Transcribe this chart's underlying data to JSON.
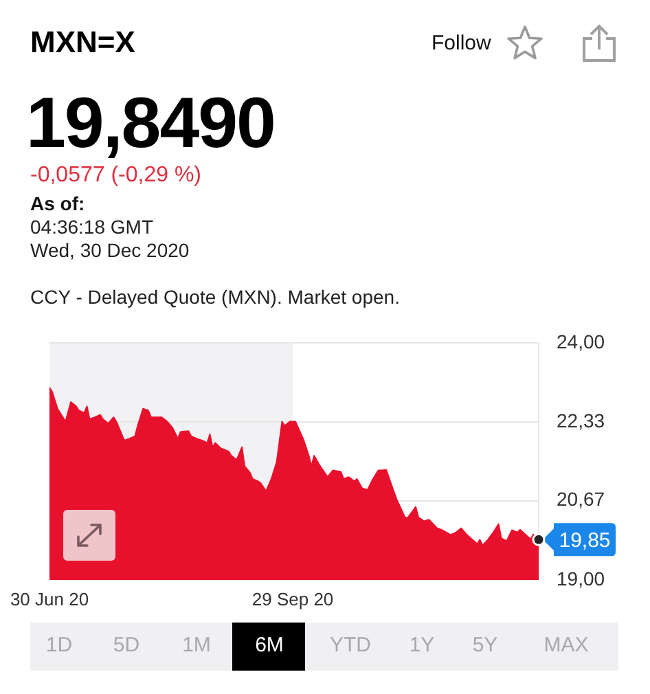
{
  "chart_data": {
    "type": "area",
    "title": "MXN=X",
    "subtitle": "19,8490",
    "annotations": [
      "Follow",
      "-0,0577 (-0,29 %)",
      "As of:",
      "04:36:18 GMT",
      "Wed, 30 Dec 2020",
      "CCY - Delayed Quote (MXN). Market open.",
      "1D",
      "5D",
      "1M",
      "6M",
      "YTD",
      "1Y",
      "5Y",
      "MAX",
      {
        "text": "19,85",
        "x": "2020-12-30",
        "y": 19.85
      }
    ],
    "x": [
      "2020-06-30",
      "2020-07-01",
      "2020-07-03",
      "2020-07-05",
      "2020-07-06",
      "2020-07-08",
      "2020-07-10",
      "2020-07-11",
      "2020-07-13",
      "2020-07-14",
      "2020-07-15",
      "2020-07-17",
      "2020-07-19",
      "2020-07-20",
      "2020-07-22",
      "2020-07-24",
      "2020-07-25",
      "2020-07-28",
      "2020-07-30",
      "2020-08-01",
      "2020-08-02",
      "2020-08-04",
      "2020-08-06",
      "2020-08-07",
      "2020-08-09",
      "2020-08-11",
      "2020-08-13",
      "2020-08-15",
      "2020-08-17",
      "2020-08-18",
      "2020-08-21",
      "2020-08-22",
      "2020-08-24",
      "2020-08-26",
      "2020-08-28",
      "2020-08-29",
      "2020-08-30",
      "2020-08-31",
      "2020-09-02",
      "2020-09-05",
      "2020-09-06",
      "2020-09-08",
      "2020-09-10",
      "2020-09-11",
      "2020-09-13",
      "2020-09-14",
      "2020-09-16",
      "2020-09-17",
      "2020-09-19",
      "2020-09-21",
      "2020-09-23",
      "2020-09-25",
      "2020-09-26",
      "2020-09-28",
      "2020-09-30",
      "2020-10-03",
      "2020-10-05",
      "2020-10-06",
      "2020-10-07",
      "2020-10-09",
      "2020-10-12",
      "2020-10-14",
      "2020-10-17",
      "2020-10-18",
      "2020-10-20",
      "2020-10-22",
      "2020-10-23",
      "2020-10-25",
      "2020-10-27",
      "2020-10-29",
      "2020-10-31",
      "2020-11-01",
      "2020-11-03",
      "2020-11-05",
      "2020-11-07",
      "2020-11-10",
      "2020-11-11",
      "2020-11-14",
      "2020-11-15",
      "2020-11-17",
      "2020-11-19",
      "2020-11-22",
      "2020-11-24",
      "2020-11-27",
      "2020-11-29",
      "2020-12-01",
      "2020-12-03",
      "2020-12-04",
      "2020-12-07",
      "2020-12-08",
      "2020-12-09",
      "2020-12-11",
      "2020-12-13",
      "2020-12-15",
      "2020-12-16",
      "2020-12-18",
      "2020-12-20",
      "2020-12-22",
      "2020-12-23",
      "2020-12-25",
      "2020-12-27",
      "2020-12-28",
      "2020-12-30"
    ],
    "series": [
      {
        "color": "#e8112d",
        "values": [
          23.06,
          22.97,
          22.61,
          22.43,
          22.34,
          22.75,
          22.66,
          22.57,
          22.52,
          22.66,
          22.39,
          22.43,
          22.48,
          22.39,
          22.3,
          22.43,
          22.34,
          21.94,
          21.98,
          22.03,
          22.25,
          22.61,
          22.57,
          22.43,
          22.43,
          22.43,
          22.34,
          22.21,
          21.98,
          22.12,
          22.14,
          22.03,
          21.98,
          21.94,
          21.89,
          22.07,
          21.8,
          21.89,
          21.78,
          21.71,
          21.62,
          21.53,
          21.8,
          21.4,
          21.26,
          21.13,
          21.08,
          21.04,
          20.87,
          21.13,
          21.49,
          22.34,
          22.25,
          22.34,
          22.34,
          21.96,
          21.62,
          21.4,
          21.62,
          21.42,
          21.17,
          21.31,
          21.28,
          21.13,
          21.17,
          21.08,
          21.13,
          20.93,
          20.9,
          21.13,
          21.31,
          21.31,
          21.32,
          20.99,
          20.68,
          20.32,
          20.31,
          20.54,
          20.32,
          20.24,
          20.27,
          20.09,
          20.05,
          19.95,
          20.0,
          20.09,
          19.96,
          19.91,
          19.76,
          19.85,
          19.73,
          19.85,
          20.0,
          20.18,
          19.88,
          19.82,
          20.05,
          20.0,
          20.06,
          19.96,
          19.86,
          19.96,
          19.85
        ]
      }
    ],
    "xlim": [
      "2020-06-30",
      "2020-12-30"
    ],
    "xticks": [
      {
        "value": "2020-06-30",
        "label": "30 Jun 20"
      },
      {
        "value": "2020-09-29",
        "label": "29 Sep 20"
      }
    ],
    "ylim": [
      19,
      24
    ],
    "yticks": [
      {
        "value": 24,
        "label": "24,00"
      },
      {
        "value": 22.33,
        "label": "22,33"
      },
      {
        "value": 20.67,
        "label": "20,67"
      },
      {
        "value": 19,
        "label": "19,00"
      }
    ],
    "bands": [
      {
        "axis": "x",
        "from": "2020-06-30",
        "to": "2020-09-29",
        "color": "#f2f2f4"
      }
    ],
    "grid": "y"
  }
}
